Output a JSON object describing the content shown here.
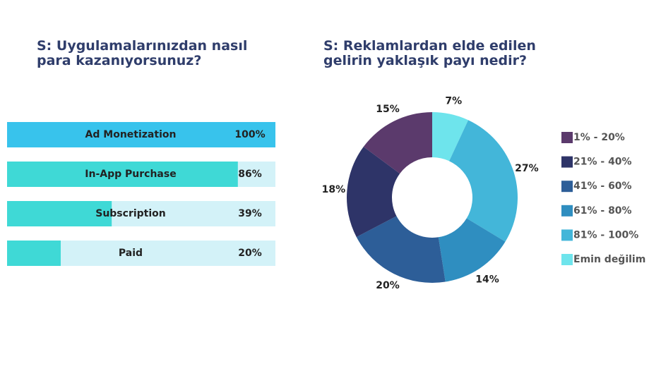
{
  "chart_data": [
    {
      "type": "hbar",
      "title": "S: Uygulamalarınızdan nasıl\npara kazanıyorsunuz?",
      "categories": [
        "Ad Monetization",
        "In-App Purchase",
        "Subscription",
        "Paid"
      ],
      "values": [
        100,
        86,
        39,
        20
      ],
      "value_labels": [
        "100%",
        "86%",
        "39%",
        "20%"
      ],
      "colors": [
        "#38c3ec",
        "#3fd9d6",
        "#3fd9d6",
        "#3fd9d6"
      ],
      "track_color": "#d3f2f8",
      "xlim": [
        0,
        100
      ]
    },
    {
      "type": "donut",
      "title": "S: Reklamlardan elde edilen\ngelirin yaklaşık payı nedir?",
      "categories": [
        "1% - 20%",
        "21% - 40%",
        "41% - 60%",
        "61% - 80%",
        "81% - 100%",
        "Emin değilim"
      ],
      "values": [
        15,
        18,
        20,
        14,
        27,
        7
      ],
      "value_labels": [
        "15%",
        "18%",
        "20%",
        "14%",
        "27%",
        "7%"
      ],
      "colors": [
        "#5b3a6c",
        "#2e3468",
        "#2d5e98",
        "#2f8ec0",
        "#43b6d9",
        "#6ee4ec"
      ],
      "legend": "right"
    }
  ]
}
